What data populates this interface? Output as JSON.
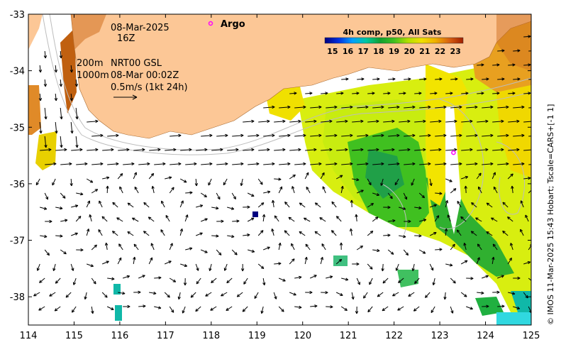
{
  "colors": {
    "land": "#fcc796",
    "land_edge": "#b87a3a",
    "ocean_bg": "#ffffff",
    "argo_marker": "#ff00ff",
    "arrow": "#000000",
    "contour": "#bdbdbd",
    "sst_scale": [
      "#00007f",
      "#0020d0",
      "#0090ff",
      "#00c8b0",
      "#10a040",
      "#20c020",
      "#88dd00",
      "#ccee00",
      "#f0e000",
      "#f0b000",
      "#e07a20",
      "#c05010",
      "#a02000"
    ]
  },
  "annotations": {
    "date": "08-Mar-2025",
    "time": "16Z",
    "depth_200": "200m",
    "depth_1000": "1000m",
    "product": "NRT00 GSL",
    "product_time": "08-Mar 00:02Z",
    "velocity_scale": "0.5m/s (1kt 24h)"
  },
  "legend": {
    "argo_label": "Argo"
  },
  "colorbar": {
    "title": "4h comp, p50, All Sats",
    "ticks": [
      "15",
      "16",
      "17",
      "18",
      "19",
      "20",
      "21",
      "22",
      "23"
    ],
    "min": 14.5,
    "max": 23.5
  },
  "side_credit": "© IMOS 11-Mar-2025 15:43 Hobart; Tscale=CARS+[-1 1]",
  "axes": {
    "x_ticks": [
      "114",
      "115",
      "116",
      "117",
      "118",
      "119",
      "120",
      "121",
      "122",
      "123",
      "124",
      "125"
    ],
    "y_ticks": [
      "-33",
      "-34",
      "-35",
      "-36",
      "-37",
      "-38"
    ],
    "lon_range": [
      114,
      125
    ],
    "lat_range": [
      -38.5,
      -33
    ]
  },
  "argo_floats": [
    {
      "lon": 123.3,
      "lat": -35.45
    }
  ]
}
